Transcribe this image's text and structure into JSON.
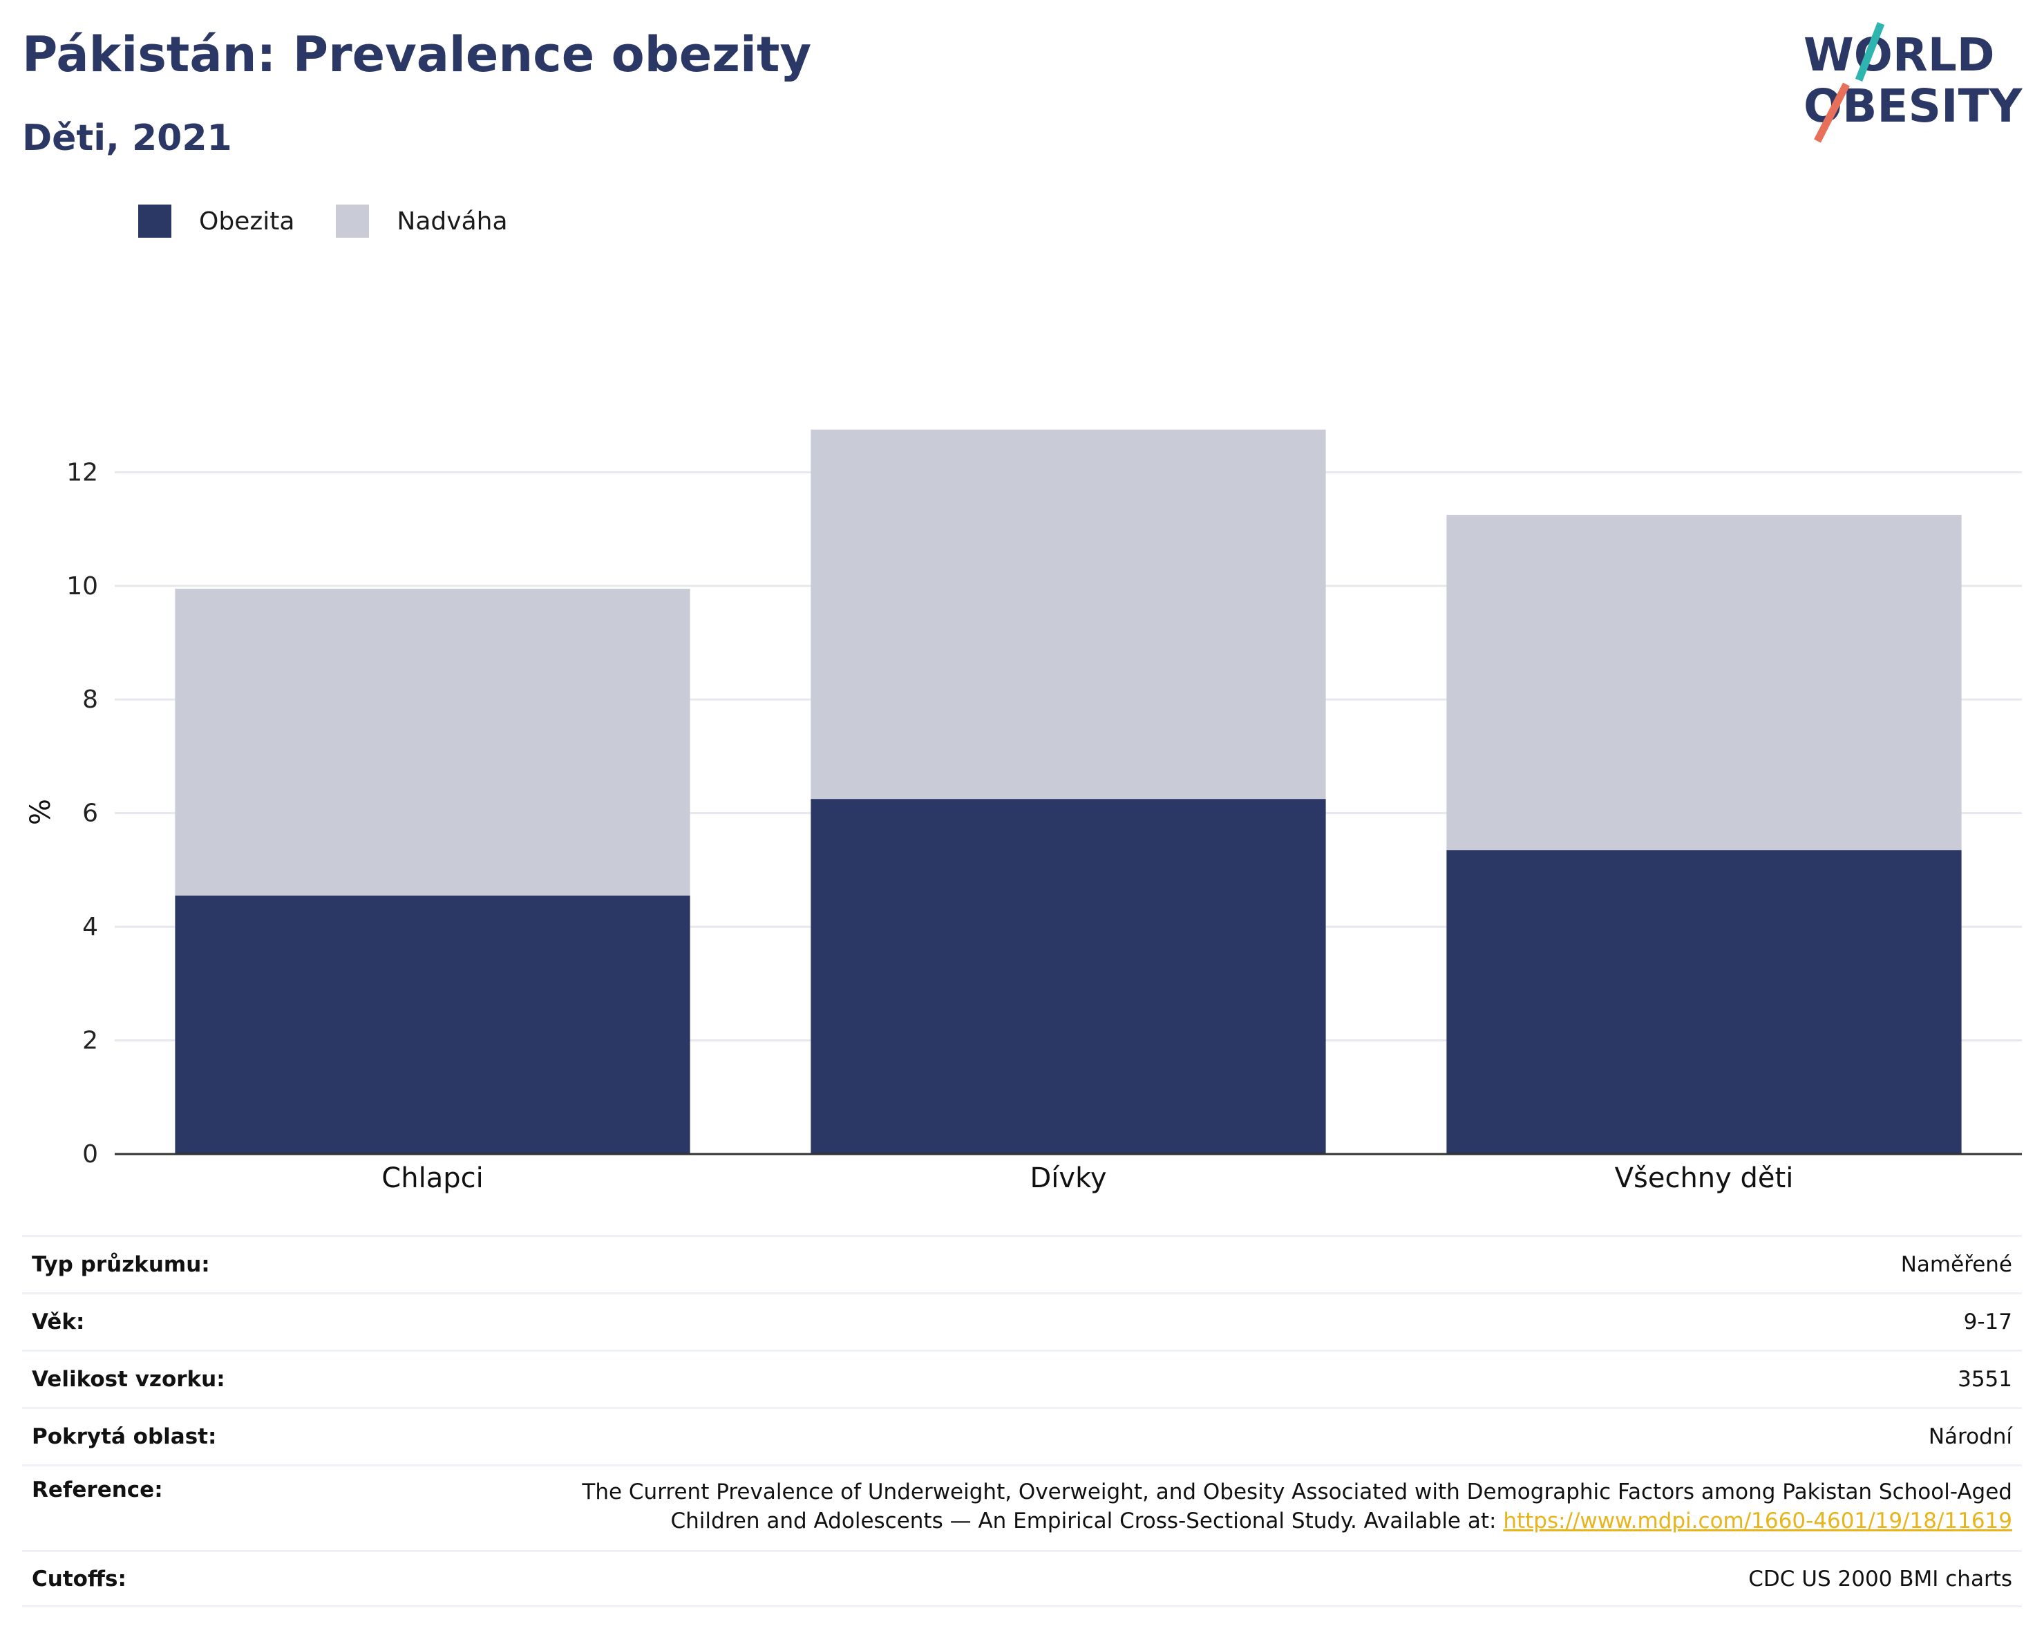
{
  "header": {
    "title": "Pákistán: Prevalence obezity",
    "subtitle": "Děti, 2021"
  },
  "logo": {
    "line1": "WORLD",
    "line2": "OBESITY",
    "colors": {
      "text": "#2b3764",
      "teal": "#2fb5b0",
      "coral": "#e8705a"
    }
  },
  "legend": {
    "items": [
      {
        "label": "Obezita",
        "color": "#2b3764"
      },
      {
        "label": "Nadváha",
        "color": "#c9ccd7"
      }
    ]
  },
  "chart_data": {
    "type": "bar",
    "stacked": true,
    "categories": [
      "Chlapci",
      "Dívky",
      "Všechny děti"
    ],
    "series": [
      {
        "name": "Obezita",
        "values": [
          4.55,
          6.25,
          5.35
        ],
        "color": "#2b3764"
      },
      {
        "name": "Nadváha",
        "values": [
          5.4,
          6.5,
          5.9
        ],
        "color": "#c9ccd7"
      }
    ],
    "ylabel": "%",
    "xlabel": "",
    "ylim": [
      0,
      13.5
    ],
    "yticks": [
      0,
      2,
      4,
      6,
      8,
      10,
      12
    ],
    "grid": true,
    "legend_position": "top-left"
  },
  "meta": {
    "rows": [
      {
        "key": "Typ průzkumu:",
        "value": "Naměřené"
      },
      {
        "key": "Věk:",
        "value": "9-17"
      },
      {
        "key": "Velikost vzorku:",
        "value": "3551"
      },
      {
        "key": "Pokrytá oblast:",
        "value": "Národní"
      },
      {
        "key": "Reference:",
        "value_line1": "The Current Prevalence of Underweight, Overweight, and Obesity Associated with Demographic Factors among Pakistan School-Aged",
        "value_line2": "Children and Adolescents — An Empirical Cross-Sectional Study. Available at: ",
        "link": "https://www.mdpi.com/1660-4601/19/18/11619"
      },
      {
        "key": "Cutoffs:",
        "value": "CDC US 2000 BMI charts"
      }
    ]
  }
}
